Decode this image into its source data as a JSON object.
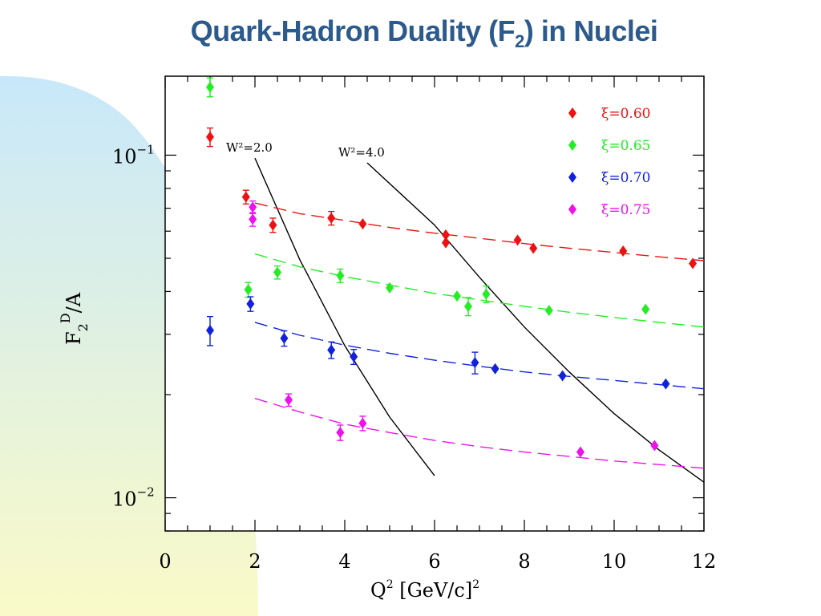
{
  "slide": {
    "title_main": "Quark-Hadron Duality (F",
    "title_sub": "2",
    "title_end": ") in Nuclei"
  },
  "colors": {
    "title": "#2c5a8c",
    "bg_gradient_top": "#c8e8fa",
    "bg_gradient_bottom": "#fafac8"
  },
  "chart_data": {
    "type": "scatter",
    "xlabel": "Q² [GeV/c]²",
    "ylabel": "F₂ᴰ/A",
    "xlim": [
      0,
      12
    ],
    "ylim": [
      0.008,
      0.17
    ],
    "yscale": "log",
    "x_ticks": [
      "0",
      "2",
      "4",
      "6",
      "8",
      "10",
      "12"
    ],
    "y_ticks": [
      {
        "base": "10",
        "exp": "−1",
        "value": 0.1
      },
      {
        "base": "10",
        "exp": "−2",
        "value": 0.01
      }
    ],
    "legend_position": "top-right",
    "series": [
      {
        "name": "ξ=0.60",
        "color": "#ee1111",
        "points": [
          [
            1.0,
            0.113,
            0.007
          ],
          [
            1.8,
            0.0755,
            0.0035
          ],
          [
            2.4,
            0.0625,
            0.003
          ],
          [
            3.7,
            0.0655,
            0.003
          ],
          [
            4.4,
            0.063,
            0
          ],
          [
            6.25,
            0.0585,
            0
          ],
          [
            6.25,
            0.0555,
            0
          ],
          [
            7.85,
            0.0565,
            0
          ],
          [
            8.2,
            0.0535,
            0
          ],
          [
            10.2,
            0.0525,
            0
          ],
          [
            11.75,
            0.0483,
            0
          ]
        ],
        "fit": [
          [
            2.0,
            0.0725
          ],
          [
            3,
            0.0675
          ],
          [
            4,
            0.0645
          ],
          [
            5,
            0.0615
          ],
          [
            6,
            0.0592
          ],
          [
            7,
            0.0572
          ],
          [
            8,
            0.0552
          ],
          [
            9,
            0.0535
          ],
          [
            10,
            0.052
          ],
          [
            11,
            0.0505
          ],
          [
            12,
            0.0492
          ]
        ]
      },
      {
        "name": "ξ=0.65",
        "color": "#22ee22",
        "points": [
          [
            1.0,
            0.158,
            0.01
          ],
          [
            1.85,
            0.0405,
            0.002
          ],
          [
            2.5,
            0.0455,
            0.002
          ],
          [
            3.9,
            0.0445,
            0.002
          ],
          [
            5.0,
            0.041,
            0
          ],
          [
            6.5,
            0.0388,
            0
          ],
          [
            6.75,
            0.0362,
            0.0022
          ],
          [
            7.15,
            0.0393,
            0.0022
          ],
          [
            8.55,
            0.0352,
            0
          ],
          [
            10.7,
            0.0355,
            0
          ]
        ],
        "fit": [
          [
            2.0,
            0.0515
          ],
          [
            3,
            0.0472
          ],
          [
            4,
            0.0442
          ],
          [
            5,
            0.0418
          ],
          [
            6,
            0.0395
          ],
          [
            7,
            0.0378
          ],
          [
            8,
            0.0362
          ],
          [
            9,
            0.0348
          ],
          [
            10,
            0.0336
          ],
          [
            11,
            0.0325
          ],
          [
            12,
            0.0315
          ]
        ]
      },
      {
        "name": "ξ=0.70",
        "color": "#1122dd",
        "points": [
          [
            1.0,
            0.0308,
            0.003
          ],
          [
            1.9,
            0.0368,
            0.0018
          ],
          [
            2.65,
            0.0292,
            0.0015
          ],
          [
            3.7,
            0.027,
            0.0015
          ],
          [
            4.2,
            0.0258,
            0.0013
          ],
          [
            6.9,
            0.0248,
            0.0018
          ],
          [
            7.35,
            0.0238,
            0
          ],
          [
            8.85,
            0.0227,
            0
          ],
          [
            11.15,
            0.0215,
            0
          ]
        ],
        "fit": [
          [
            2.0,
            0.0325
          ],
          [
            3,
            0.0298
          ],
          [
            4,
            0.0279
          ],
          [
            5,
            0.0264
          ],
          [
            6,
            0.0252
          ],
          [
            7,
            0.0242
          ],
          [
            8,
            0.0233
          ],
          [
            9,
            0.0226
          ],
          [
            10,
            0.022
          ],
          [
            11,
            0.0214
          ],
          [
            12,
            0.0208
          ]
        ]
      },
      {
        "name": "ξ=0.75",
        "color": "#ee11ee",
        "points": [
          [
            1.95,
            0.0705,
            0.003
          ],
          [
            1.95,
            0.065,
            0.003
          ],
          [
            2.75,
            0.0193,
            0.0008
          ],
          [
            3.9,
            0.0155,
            0.0008
          ],
          [
            4.4,
            0.0165,
            0.0008
          ],
          [
            9.25,
            0.0136,
            0
          ],
          [
            10.9,
            0.0142,
            0
          ]
        ],
        "fit": [
          [
            2.0,
            0.0195
          ],
          [
            3,
            0.0178
          ],
          [
            4,
            0.0164
          ],
          [
            5,
            0.0155
          ],
          [
            6,
            0.0147
          ],
          [
            7,
            0.0141
          ],
          [
            8,
            0.0136
          ],
          [
            9,
            0.0132
          ],
          [
            10,
            0.0128
          ],
          [
            11,
            0.0125
          ],
          [
            12,
            0.0122
          ]
        ]
      }
    ],
    "curves": [
      {
        "label": "W²=2.0",
        "points": [
          [
            2.0,
            0.098
          ],
          [
            3,
            0.0495
          ],
          [
            4,
            0.0278
          ],
          [
            5,
            0.0172
          ],
          [
            6,
            0.0116
          ]
        ]
      },
      {
        "label": "W²=4.0",
        "points": [
          [
            4.5,
            0.095
          ],
          [
            6,
            0.0625
          ],
          [
            7,
            0.044
          ],
          [
            8,
            0.0315
          ],
          [
            9,
            0.0233
          ],
          [
            10,
            0.0176
          ],
          [
            11,
            0.0138
          ],
          [
            12,
            0.0111
          ]
        ]
      }
    ]
  }
}
